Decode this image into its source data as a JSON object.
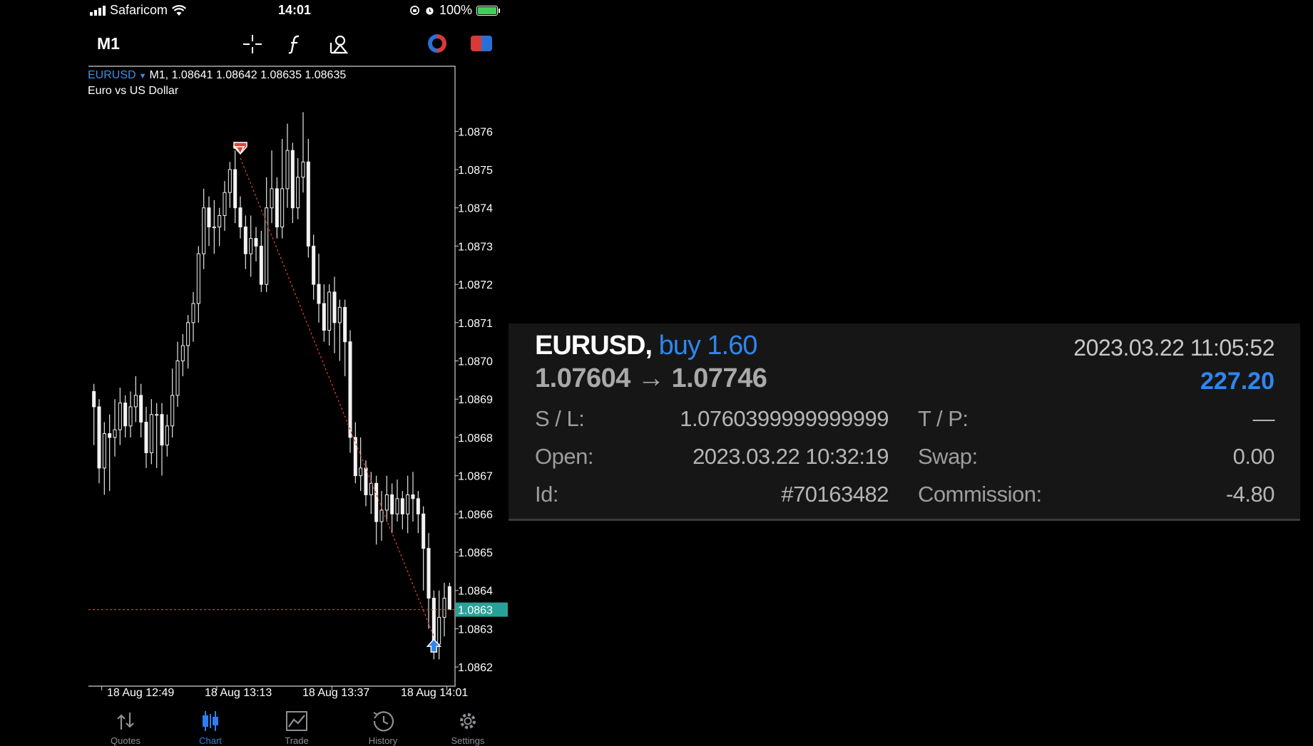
{
  "status_bar": {
    "carrier": "Safaricom",
    "time": "14:01",
    "battery": "100%"
  },
  "toolbar": {
    "timeframe": "M1",
    "icons": [
      "crosshair-icon",
      "function-icon",
      "objects-icon",
      "one-click-trading-icon",
      "trade-icon"
    ]
  },
  "chart": {
    "symbol": "EURUSD",
    "quote_line": "M1, 1.08641 1.08642 1.08635 1.08635",
    "description": "Euro vs US Dollar",
    "current_price_label": "1.0863",
    "price_ticks": [
      "1.0876",
      "1.0875",
      "1.0874",
      "1.0873",
      "1.0872",
      "1.0871",
      "1.0870",
      "1.0869",
      "1.0868",
      "1.0867",
      "1.0866",
      "1.0865",
      "1.0864",
      "1.0863",
      "1.0862"
    ],
    "time_ticks": [
      "18 Aug 12:49",
      "18 Aug 13:13",
      "18 Aug 13:37",
      "18 Aug 14:01"
    ],
    "colors": {
      "symbol": "#3c8ee6",
      "sell_arrow": "#e0443a",
      "buy_arrow": "#2f86f0",
      "price_tag": "#2aa198",
      "trade_line": "#d23a2a"
    }
  },
  "chart_data": {
    "type": "candlestick",
    "symbol": "EURUSD",
    "timeframe": "M1",
    "ylim": [
      1.08615,
      1.08775
    ],
    "current_price": 1.08635,
    "candles": [
      [
        1.08692,
        1.08688,
        1.08694,
        1.08678
      ],
      [
        1.08688,
        1.08672,
        1.0869,
        1.08668
      ],
      [
        1.08672,
        1.08681,
        1.08684,
        1.08665
      ],
      [
        1.08681,
        1.0868,
        1.08686,
        1.08666
      ],
      [
        1.0868,
        1.08682,
        1.0869,
        1.08675
      ],
      [
        1.08682,
        1.08689,
        1.08693,
        1.08678
      ],
      [
        1.08689,
        1.08683,
        1.08691,
        1.0868
      ],
      [
        1.08683,
        1.08688,
        1.08692,
        1.0868
      ],
      [
        1.08688,
        1.08691,
        1.08696,
        1.08684
      ],
      [
        1.08691,
        1.08684,
        1.08694,
        1.0868
      ],
      [
        1.08684,
        1.08676,
        1.08688,
        1.08672
      ],
      [
        1.08676,
        1.08686,
        1.0869,
        1.08673
      ],
      [
        1.08686,
        1.08686,
        1.08689,
        1.08672
      ],
      [
        1.08686,
        1.08678,
        1.08689,
        1.0867
      ],
      [
        1.08678,
        1.08683,
        1.08686,
        1.08675
      ],
      [
        1.08683,
        1.08691,
        1.08698,
        1.0868
      ],
      [
        1.08691,
        1.087,
        1.08705,
        1.08688
      ],
      [
        1.087,
        1.08704,
        1.08707,
        1.08696
      ],
      [
        1.08704,
        1.0871,
        1.08712,
        1.08698
      ],
      [
        1.0871,
        1.08715,
        1.08718,
        1.08705
      ],
      [
        1.08715,
        1.08728,
        1.0873,
        1.0871
      ],
      [
        1.08728,
        1.0874,
        1.08745,
        1.08724
      ],
      [
        1.0874,
        1.08735,
        1.08743,
        1.0873
      ],
      [
        1.08735,
        1.08735,
        1.08742,
        1.08728
      ],
      [
        1.08735,
        1.08738,
        1.0874,
        1.0873
      ],
      [
        1.08738,
        1.08744,
        1.08747,
        1.08734
      ],
      [
        1.08744,
        1.0875,
        1.08752,
        1.0874
      ],
      [
        1.0875,
        1.0874,
        1.08755,
        1.08736
      ],
      [
        1.0874,
        1.08735,
        1.08743,
        1.08732
      ],
      [
        1.08735,
        1.08728,
        1.08738,
        1.08724
      ],
      [
        1.08728,
        1.08732,
        1.08738,
        1.08722
      ],
      [
        1.08732,
        1.0873,
        1.08735,
        1.08726
      ],
      [
        1.0873,
        1.0872,
        1.08734,
        1.08718
      ],
      [
        1.0872,
        1.0874,
        1.08748,
        1.08718
      ],
      [
        1.0874,
        1.08745,
        1.08755,
        1.08736
      ],
      [
        1.08745,
        1.08735,
        1.08748,
        1.08732
      ],
      [
        1.08735,
        1.08745,
        1.08758,
        1.08732
      ],
      [
        1.08745,
        1.08755,
        1.08762,
        1.0874
      ],
      [
        1.08755,
        1.0874,
        1.08757,
        1.08736
      ],
      [
        1.0874,
        1.08748,
        1.08753,
        1.08737
      ],
      [
        1.08748,
        1.08752,
        1.08765,
        1.08744
      ],
      [
        1.08752,
        1.0873,
        1.08758,
        1.08727
      ],
      [
        1.0873,
        1.0872,
        1.08733,
        1.08716
      ],
      [
        1.0872,
        1.08715,
        1.08728,
        1.0871
      ],
      [
        1.08715,
        1.08708,
        1.0872,
        1.08705
      ],
      [
        1.08708,
        1.08718,
        1.0872,
        1.08704
      ],
      [
        1.08718,
        1.0871,
        1.08722,
        1.08702
      ],
      [
        1.0871,
        1.08714,
        1.08716,
        1.087
      ],
      [
        1.08714,
        1.08705,
        1.08716,
        1.08696
      ],
      [
        1.08705,
        1.0868,
        1.08708,
        1.08676
      ],
      [
        1.0868,
        1.0867,
        1.08684,
        1.08668
      ],
      [
        1.0867,
        1.08672,
        1.0868,
        1.08666
      ],
      [
        1.08672,
        1.08665,
        1.08674,
        1.08662
      ],
      [
        1.08665,
        1.08668,
        1.08671,
        1.0866
      ],
      [
        1.08668,
        1.08658,
        1.0867,
        1.08652
      ],
      [
        1.08658,
        1.08661,
        1.08666,
        1.08653
      ],
      [
        1.08661,
        1.08665,
        1.0867,
        1.08658
      ],
      [
        1.08665,
        1.0866,
        1.08668,
        1.08655
      ],
      [
        1.0866,
        1.08664,
        1.08669,
        1.08658
      ],
      [
        1.08664,
        1.0866,
        1.08666,
        1.08656
      ],
      [
        1.0866,
        1.08665,
        1.0867,
        1.08655
      ],
      [
        1.08665,
        1.08664,
        1.08671,
        1.08658
      ],
      [
        1.08664,
        1.0866,
        1.08666,
        1.08655
      ],
      [
        1.0866,
        1.08651,
        1.08662,
        1.0864
      ],
      [
        1.08651,
        1.08638,
        1.08655,
        1.0863
      ],
      [
        1.08638,
        1.08626,
        1.0864,
        1.08622
      ],
      [
        1.08626,
        1.08633,
        1.0864,
        1.08622
      ],
      [
        1.08633,
        1.08638,
        1.08642,
        1.08628
      ],
      [
        1.08641,
        1.08635,
        1.08642,
        1.08635
      ]
    ],
    "markers": [
      {
        "type": "sell",
        "candle": 28,
        "price": 1.08753
      },
      {
        "type": "buy",
        "candle": 65,
        "price": 1.08628
      }
    ],
    "x_tick_labels": [
      "18 Aug 12:49",
      "18 Aug 13:13",
      "18 Aug 13:37",
      "18 Aug 14:01"
    ],
    "y_tick_labels": [
      "1.0876",
      "1.0875",
      "1.0874",
      "1.0873",
      "1.0872",
      "1.0871",
      "1.0870",
      "1.0869",
      "1.0868",
      "1.0867",
      "1.0866",
      "1.0865",
      "1.0864",
      "1.0863",
      "1.0862"
    ]
  },
  "tabbar": {
    "tabs": [
      {
        "label": "Quotes",
        "icon": "quotes-icon",
        "active": false
      },
      {
        "label": "Chart",
        "icon": "chart-icon",
        "active": true
      },
      {
        "label": "Trade",
        "icon": "trade-tab-icon",
        "active": false
      },
      {
        "label": "History",
        "icon": "history-icon",
        "active": false
      },
      {
        "label": "Settings",
        "icon": "settings-icon",
        "active": false
      }
    ]
  },
  "trade": {
    "symbol": "EURUSD,",
    "side": "buy 1.60",
    "datetime": "2023.03.22 11:05:52",
    "prices": "1.07604 → 1.07746",
    "profit": "227.20",
    "sl_label": "S / L:",
    "sl_value": "1.0760399999999999",
    "tp_label": "T / P:",
    "tp_value": "—",
    "open_label": "Open:",
    "open_value": "2023.03.22 10:32:19",
    "swap_label": "Swap:",
    "swap_value": "0.00",
    "id_label": "Id:",
    "id_value": "#70163482",
    "commission_label": "Commission:",
    "commission_value": "-4.80"
  }
}
